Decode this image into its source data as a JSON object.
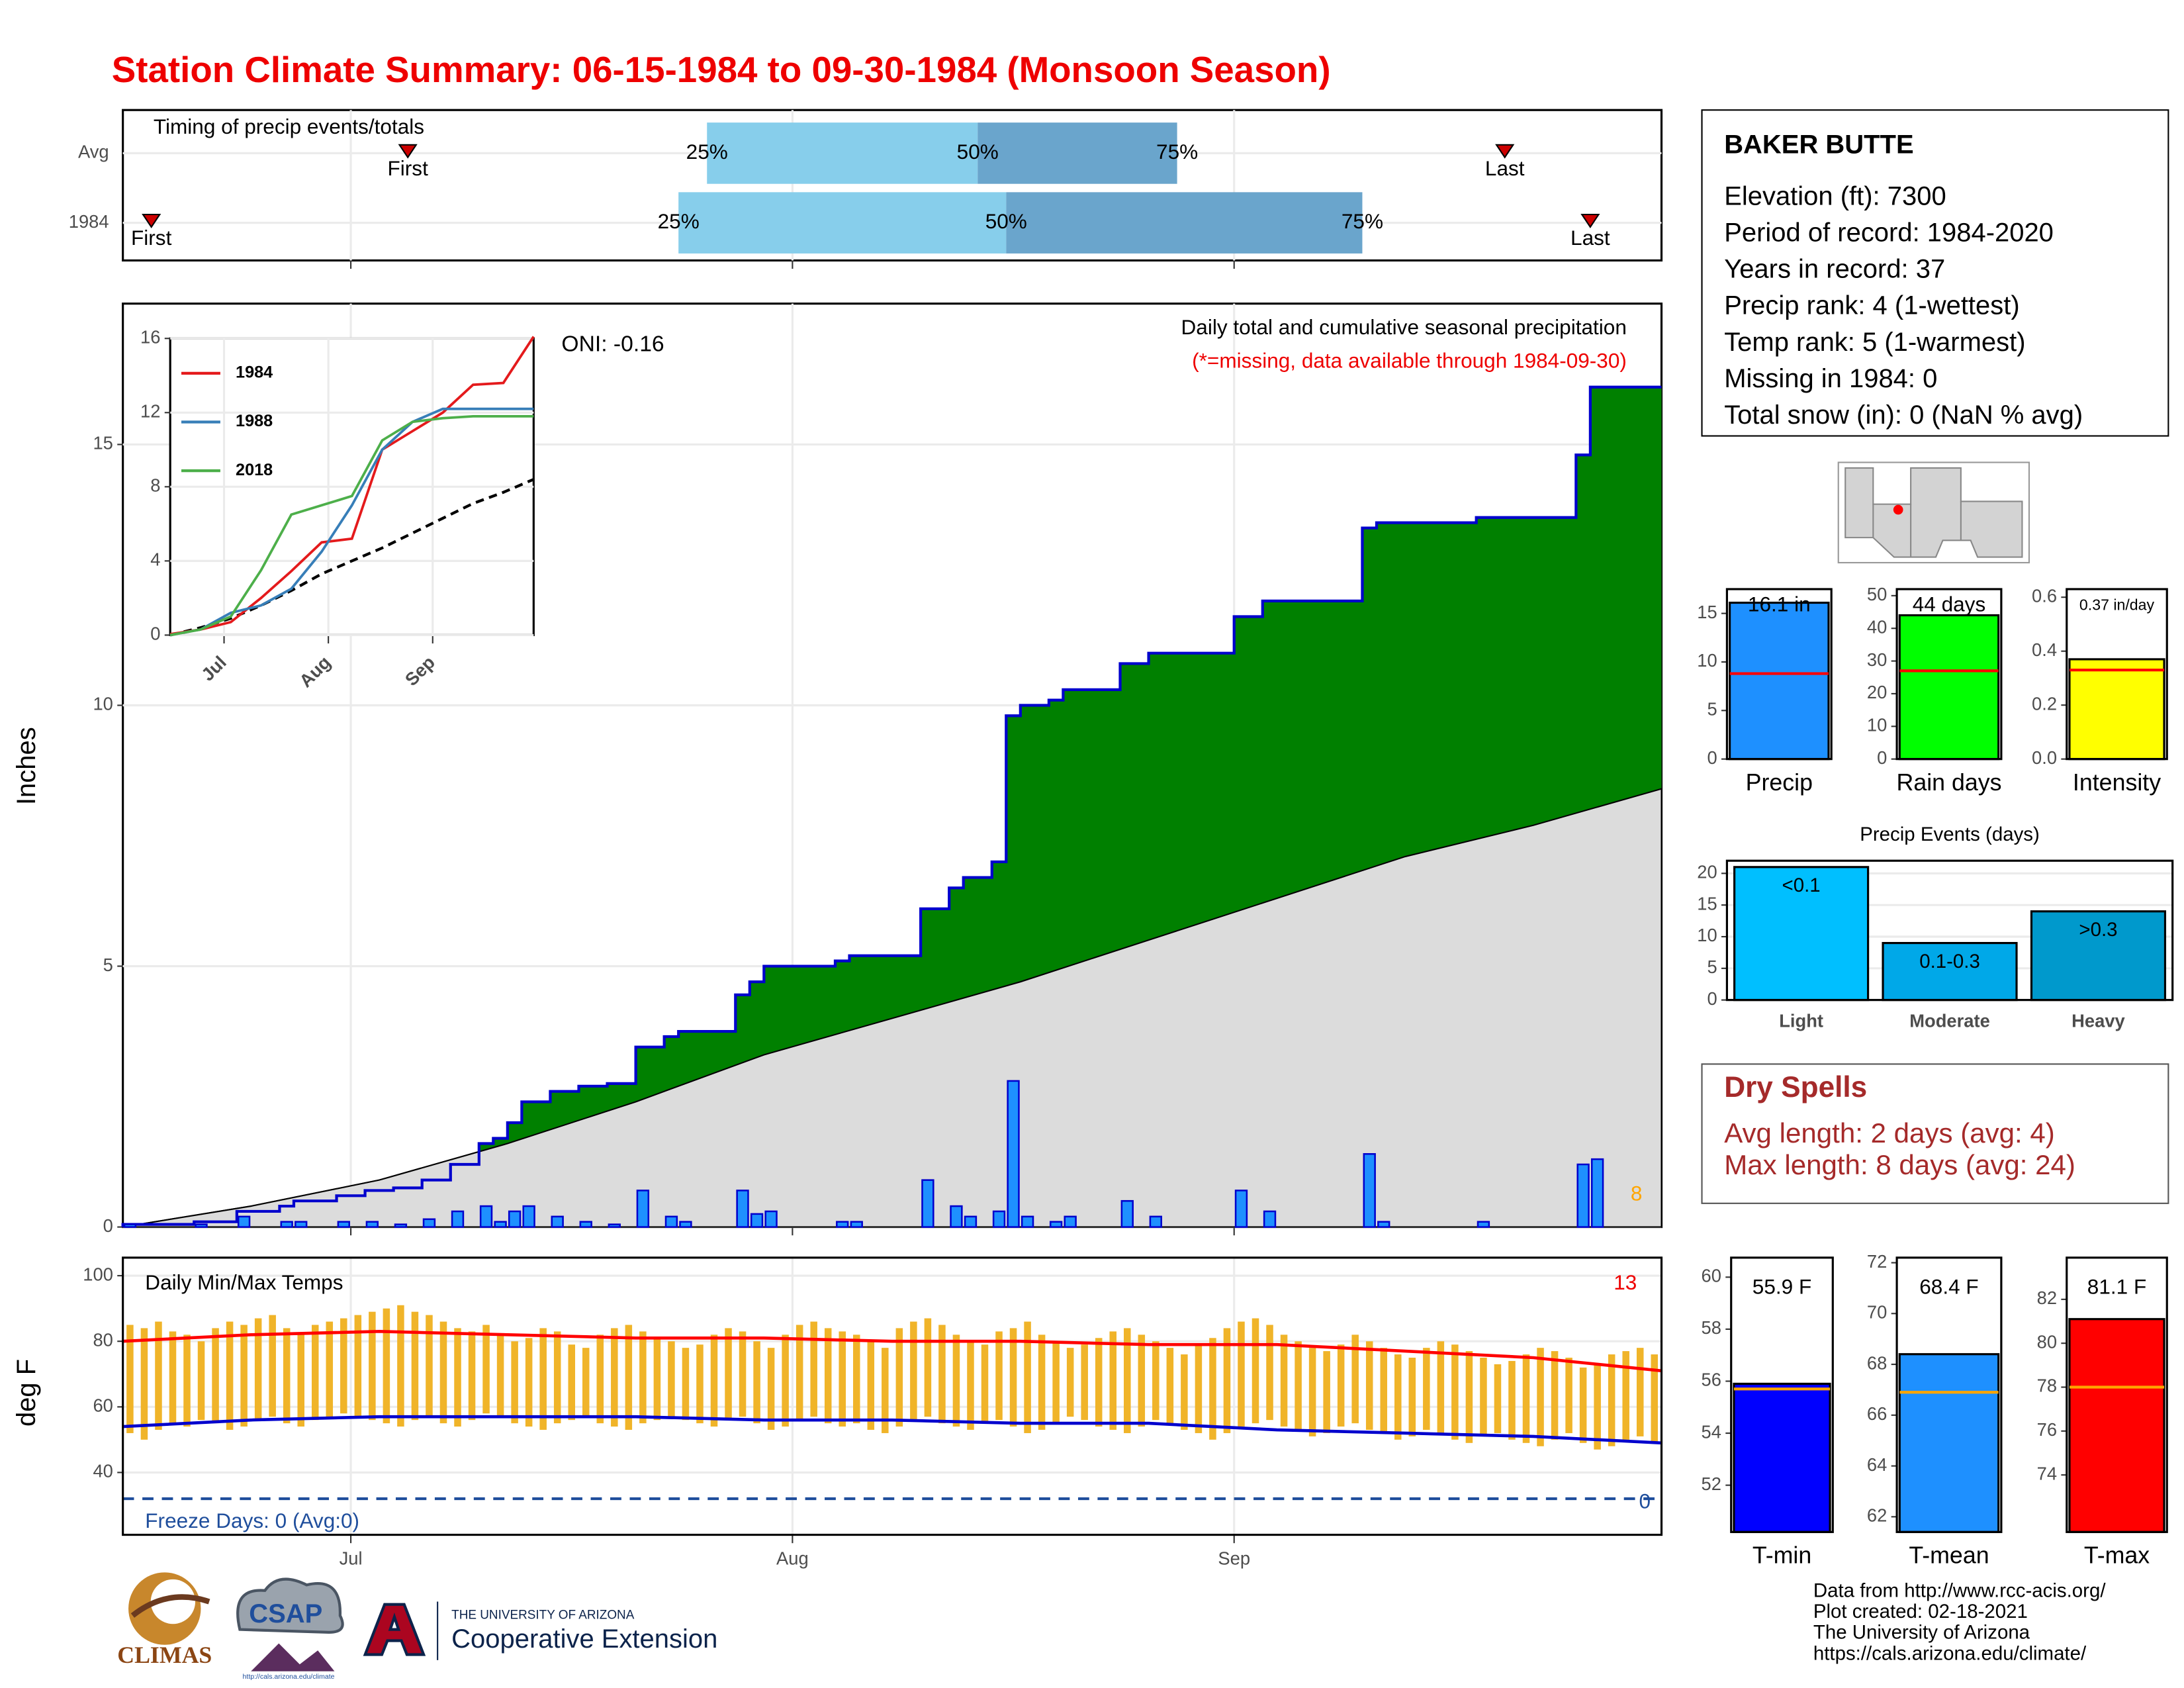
{
  "title": "Station Climate Summary: 06-15-1984 to 09-30-1984 (Monsoon Season)",
  "station": {
    "name": "BAKER BUTTE",
    "lines": [
      "Elevation (ft): 7300",
      "Period of record: 1984-2020",
      "Years in record: 37",
      "Precip rank: 4 (1-wettest)",
      "Temp rank: 5 (1-warmest)",
      "Missing in 1984: 0",
      "Total snow (in): 0 (NaN % avg)"
    ]
  },
  "dry_spells": {
    "title": "Dry Spells",
    "lines": [
      "Avg length: 2 days (avg: 4)",
      "Max length: 8 days (avg: 24)"
    ]
  },
  "credits": [
    "Data from http://www.rcc-acis.org/",
    "Plot created: 02-18-2021",
    "The University of Arizona",
    "https://cals.arizona.edu/climate/"
  ],
  "logos": {
    "climas": "CLIMAS",
    "csap": "CSAP",
    "csap_url": "http://cals.arizona.edu/climate",
    "ua": "THE UNIVERSITY OF ARIZONA",
    "coop": "Cooperative Extension"
  },
  "chart_data": [
    {
      "type": "timing",
      "title": "Timing of precip events/totals",
      "labels": {
        "first": "First",
        "q25": "25%",
        "q50": "50%",
        "q75": "75%",
        "last": "Last"
      },
      "rows": [
        {
          "name": "Avg",
          "first": 20,
          "q25": 41,
          "q50": 60,
          "q75": 74,
          "last": 97
        },
        {
          "name": "1984",
          "first": 2,
          "q25": 39,
          "q50": 62,
          "q75": 87,
          "last": 103
        }
      ],
      "colors": {
        "low": "#87ceeb",
        "high": "#6aa5cc",
        "marker": "#cc0000"
      }
    },
    {
      "type": "precip",
      "title": "Daily total and cumulative seasonal precipitation",
      "subtitle": "(*=missing, data available through 1984-09-30)",
      "annotation": "ONI: -0.16",
      "y_label": "Inches",
      "record_count": 8,
      "ylim": [
        0,
        17.7
      ],
      "yticks": [
        0,
        5,
        10,
        15
      ],
      "color": "#1e90ff",
      "cumulative_color": "#008000",
      "outline_color": "#0000cd",
      "daily": [
        0.05,
        0,
        0,
        0,
        0,
        0.05,
        0,
        0,
        0.2,
        0,
        0,
        0.1,
        0.1,
        0,
        0,
        0.1,
        0,
        0.1,
        0,
        0.05,
        0,
        0.15,
        0,
        0.3,
        0,
        0.4,
        0.1,
        0.3,
        0.4,
        0,
        0.2,
        0,
        0.1,
        0,
        0.05,
        0,
        0.7,
        0,
        0.2,
        0.1,
        0,
        0,
        0,
        0.7,
        0.25,
        0.3,
        0,
        0,
        0,
        0,
        0.1,
        0.1,
        0,
        0,
        0,
        0,
        0.9,
        0,
        0.4,
        0.2,
        0,
        0.3,
        2.8,
        0.2,
        0,
        0.1,
        0.2,
        0,
        0,
        0,
        0.5,
        0,
        0.2,
        0,
        0,
        0,
        0,
        0,
        0.7,
        0,
        0.3,
        0,
        0,
        0,
        0,
        0,
        0,
        1.4,
        0.1,
        0,
        0,
        0,
        0,
        0,
        0,
        0.1,
        0,
        0,
        0,
        0,
        0,
        0,
        1.2,
        1.3,
        0,
        0,
        0,
        0
      ],
      "avg_cumulative": {
        "color": "#dcdcdc",
        "days": [
          0,
          9,
          18,
          27,
          36,
          45,
          54,
          63,
          72,
          81,
          90,
          99,
          108
        ],
        "values": [
          0,
          0.4,
          0.9,
          1.6,
          2.4,
          3.3,
          4.0,
          4.7,
          5.5,
          6.3,
          7.1,
          7.7,
          8.4
        ]
      }
    },
    {
      "type": "temperature",
      "title": "Daily Min/Max Temps",
      "y_label": "deg F",
      "record_count": 13,
      "freeze_label": "Freeze Days: 0 (Avg:0)",
      "freeze_count": 0,
      "freeze_threshold": 32,
      "xlim": [
        0,
        108
      ],
      "xticks": [
        {
          "value": 16,
          "label": "Jul"
        },
        {
          "value": 47,
          "label": "Aug"
        },
        {
          "value": 78,
          "label": "Sep"
        }
      ],
      "ylim": [
        21,
        105.5
      ],
      "yticks": [
        40,
        60,
        80,
        100
      ],
      "bar_color": "#f0b429",
      "tmax": [
        85,
        84,
        86,
        83,
        82,
        80,
        84,
        86,
        85,
        87,
        88,
        84,
        82,
        85,
        86,
        87,
        88,
        89,
        90,
        91,
        89,
        88,
        86,
        84,
        83,
        85,
        82,
        80,
        81,
        84,
        83,
        79,
        78,
        82,
        84,
        85,
        83,
        81,
        80,
        78,
        79,
        82,
        84,
        83,
        80,
        78,
        82,
        85,
        86,
        84,
        83,
        82,
        80,
        78,
        84,
        86,
        87,
        85,
        82,
        80,
        79,
        83,
        84,
        86,
        82,
        80,
        78,
        79,
        81,
        83,
        84,
        82,
        80,
        78,
        76,
        79,
        81,
        84,
        86,
        87,
        85,
        82,
        80,
        78,
        77,
        79,
        82,
        80,
        78,
        76,
        75,
        78,
        80,
        79,
        77,
        75,
        73,
        74,
        76,
        78,
        77,
        75,
        72,
        73,
        76,
        77,
        78,
        76
      ],
      "tmin": [
        52,
        50,
        53,
        55,
        54,
        56,
        55,
        53,
        54,
        56,
        57,
        55,
        54,
        56,
        57,
        58,
        57,
        56,
        55,
        54,
        56,
        57,
        55,
        54,
        56,
        58,
        57,
        55,
        54,
        53,
        55,
        56,
        57,
        55,
        54,
        53,
        55,
        56,
        57,
        56,
        55,
        54,
        56,
        57,
        55,
        53,
        54,
        56,
        57,
        55,
        54,
        55,
        53,
        52,
        54,
        56,
        57,
        55,
        54,
        53,
        55,
        56,
        54,
        52,
        53,
        55,
        57,
        56,
        54,
        53,
        52,
        54,
        56,
        55,
        53,
        52,
        50,
        52,
        54,
        55,
        56,
        54,
        53,
        51,
        52,
        54,
        55,
        53,
        52,
        50,
        51,
        53,
        52,
        50,
        49,
        51,
        52,
        50,
        49,
        48,
        50,
        52,
        49,
        47,
        48,
        50,
        51,
        49
      ],
      "avg_days": [
        0,
        9,
        18,
        27,
        36,
        45,
        54,
        63,
        72,
        81,
        90,
        99,
        108
      ],
      "avg_max": {
        "color": "#ff0000",
        "values": [
          80,
          82,
          83,
          82,
          81,
          81,
          80,
          80,
          79,
          79,
          77,
          75,
          71
        ]
      },
      "avg_min": {
        "color": "#0000cd",
        "values": [
          54,
          56,
          57,
          57,
          57,
          56,
          56,
          55,
          55,
          53,
          52,
          51,
          49
        ]
      },
      "freeze_color": "#1f4e9c"
    },
    {
      "type": "line",
      "ylim": [
        0,
        16
      ],
      "yticks": [
        0,
        4,
        8,
        12,
        16
      ],
      "x": [
        0,
        9,
        18,
        27,
        36,
        45,
        54,
        63,
        72,
        81,
        90,
        99,
        108
      ],
      "series": [
        {
          "name": "1984",
          "color": "#e41a1c",
          "values": [
            0.05,
            0.3,
            0.7,
            2.0,
            3.45,
            5.0,
            5.2,
            10.0,
            11.0,
            12.0,
            13.5,
            13.6,
            16.1
          ]
        },
        {
          "name": "1988",
          "color": "#377eb8",
          "values": [
            0,
            0.3,
            1.2,
            1.6,
            2.5,
            4.5,
            7.0,
            10.0,
            11.5,
            12.2,
            12.2,
            12.2,
            12.2
          ]
        },
        {
          "name": "2018",
          "color": "#4daf4a",
          "values": [
            0,
            0.3,
            1.0,
            3.5,
            6.5,
            7.0,
            7.5,
            10.5,
            11.5,
            11.7,
            11.8,
            11.8,
            11.8
          ]
        }
      ]
    },
    {
      "type": "single-bar",
      "category": "Precip",
      "value": 16.1,
      "value_label": "16.1 in",
      "average": 8.8,
      "color": "#1e90ff",
      "avg_color": "#ff0000",
      "ylim": [
        0,
        17.5
      ],
      "yticks": [
        0,
        5,
        10,
        15
      ]
    },
    {
      "type": "single-bar",
      "category": "Rain days",
      "value": 44,
      "value_label": "44 days",
      "average": 27,
      "color": "#00ff00",
      "avg_color": "#ff0000",
      "ylim": [
        0,
        52
      ],
      "yticks": [
        0,
        10,
        20,
        30,
        40,
        50
      ]
    },
    {
      "type": "single-bar",
      "category": "Intensity",
      "value": 0.37,
      "value_label": "0.37 in/day",
      "average": 0.33,
      "color": "#ffff00",
      "avg_color": "#ff0000",
      "ylim": [
        0,
        0.63
      ],
      "yticks": [
        {
          "value": 0,
          "label": "0.0"
        },
        {
          "value": 0.2,
          "label": "0.2"
        },
        {
          "value": 0.4,
          "label": "0.4"
        },
        {
          "value": 0.6,
          "label": "0.6"
        }
      ]
    },
    {
      "type": "bar",
      "title": "Precip Events (days)",
      "categories": [
        "Light",
        "Moderate",
        "Heavy"
      ],
      "values": [
        21,
        9,
        14
      ],
      "bar_labels": [
        "<0.1",
        "0.1-0.3",
        ">0.3"
      ],
      "colors": [
        "#00bfff",
        "#00a8e8",
        "#0099cc"
      ],
      "ylim": [
        0,
        22
      ],
      "yticks": [
        0,
        5,
        10,
        15,
        20
      ]
    },
    {
      "type": "single-bar",
      "category": "T-min",
      "value": 55.9,
      "value_label": "55.9 F",
      "average": 55.7,
      "color": "#0000ff",
      "avg_color": "#ffa500",
      "ylim": [
        50.2,
        60.75
      ],
      "yticks": [
        52,
        54,
        56,
        58,
        60
      ]
    },
    {
      "type": "single-bar",
      "category": "T-mean",
      "value": 68.4,
      "value_label": "68.4 F",
      "average": 66.9,
      "color": "#1e90ff",
      "avg_color": "#ffa500",
      "ylim": [
        61.4,
        72.2
      ],
      "yticks": [
        62,
        64,
        66,
        68,
        70,
        72
      ]
    },
    {
      "type": "single-bar",
      "category": "T-max",
      "value": 81.1,
      "value_label": "81.1 F",
      "average": 78.0,
      "color": "#ff0000",
      "avg_color": "#ffa500",
      "ylim": [
        71.4,
        83.9
      ],
      "yticks": [
        74,
        76,
        78,
        80,
        82
      ]
    }
  ]
}
